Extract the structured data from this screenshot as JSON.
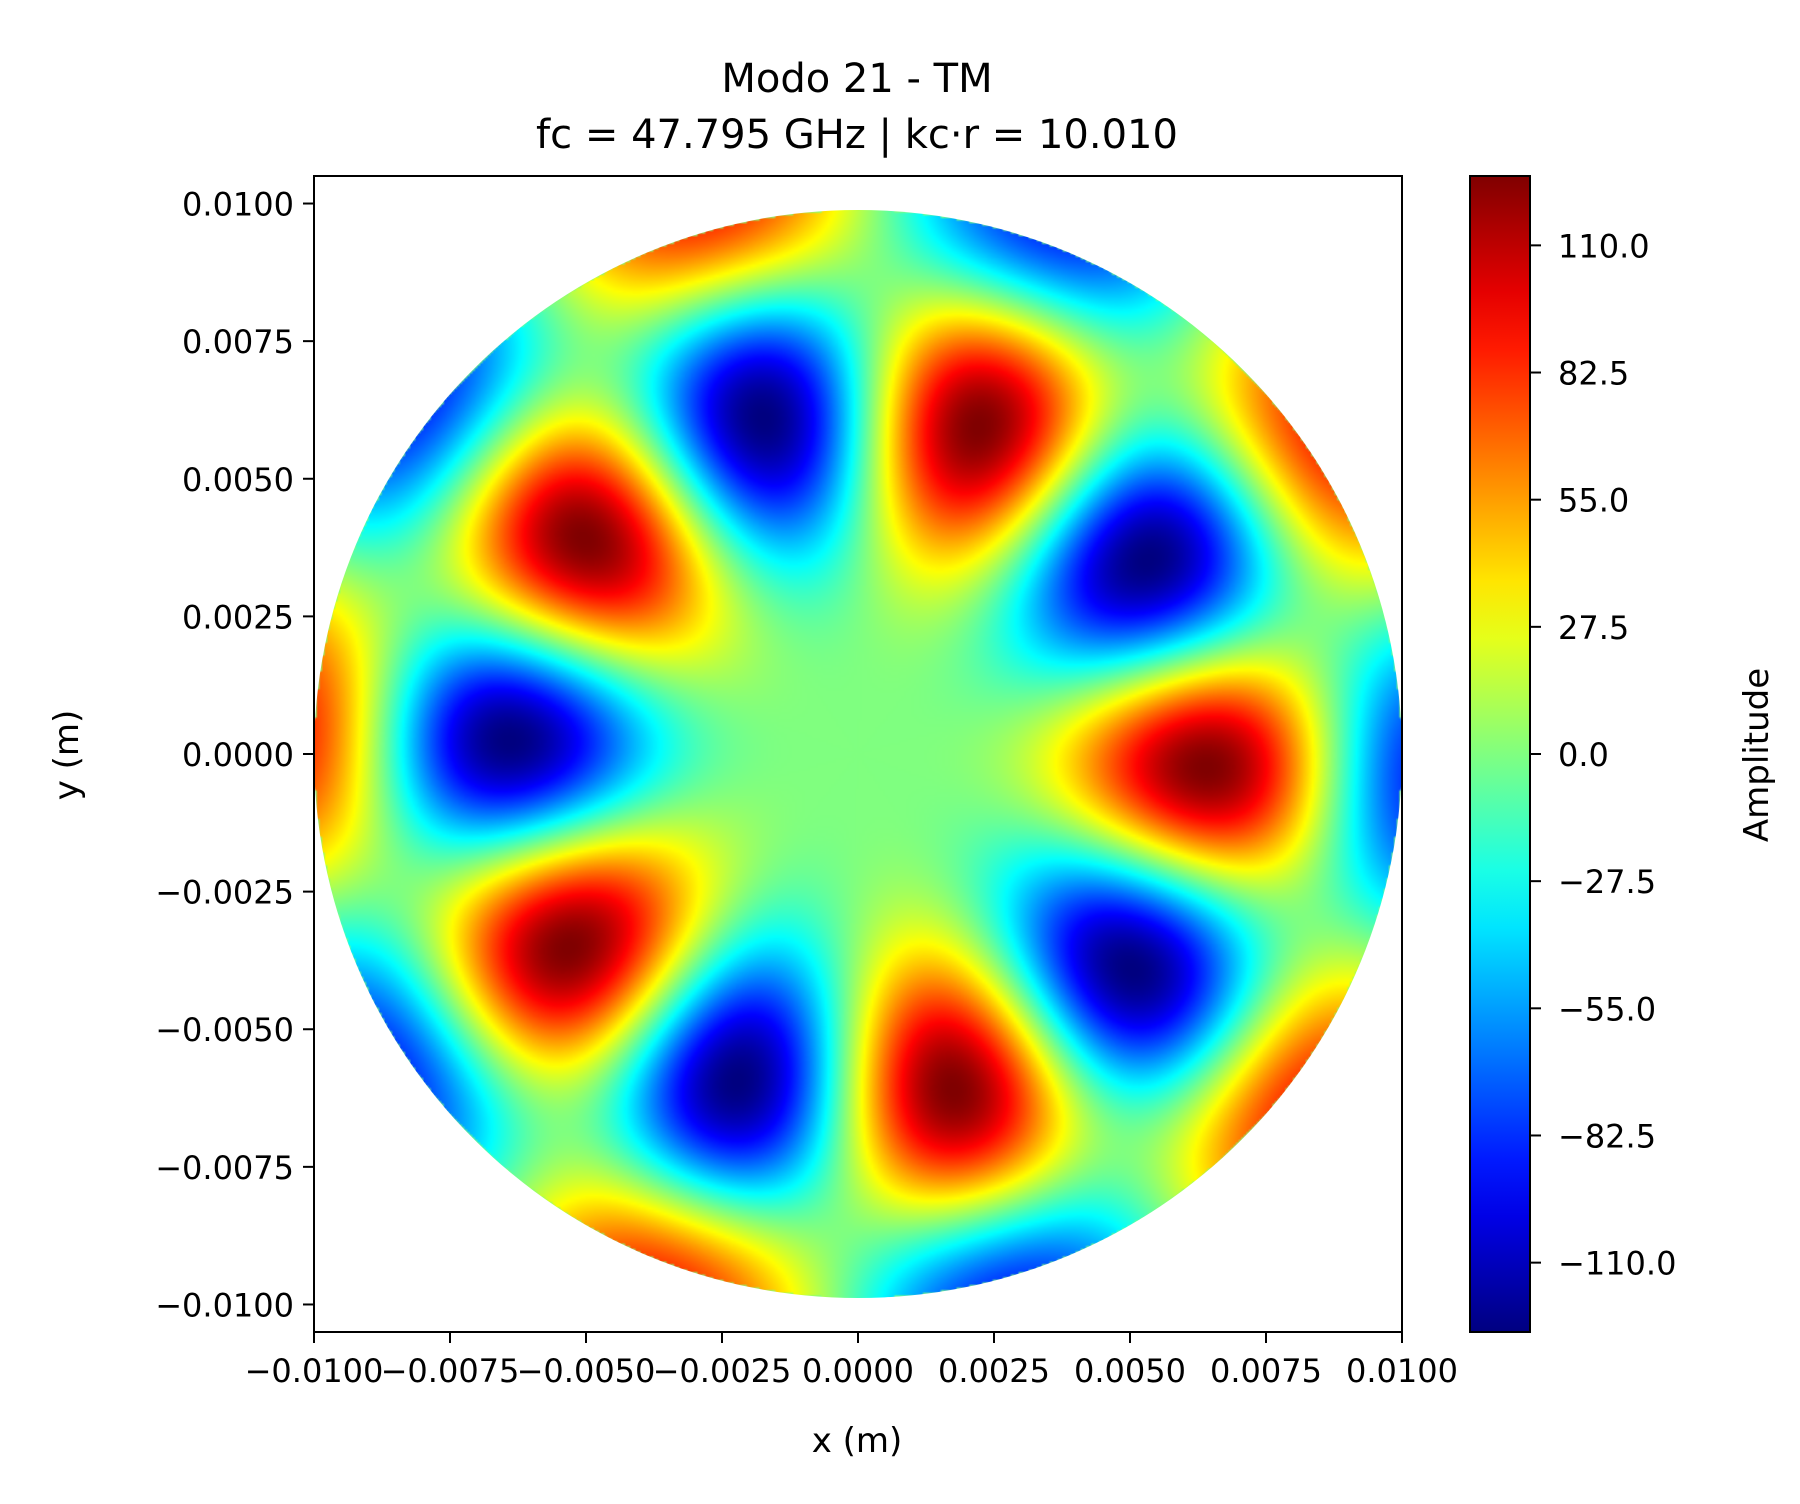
{
  "chart_data": {
    "type": "heatmap",
    "title": "Modo 21 - TM",
    "subtitle": "fc = 47.795 GHz | kc·r = 10.010",
    "xlabel": "x (m)",
    "ylabel": "y (m)",
    "xlim": [
      -0.01,
      0.01
    ],
    "ylim": [
      -0.0105,
      0.0105
    ],
    "xticks": [
      -0.01,
      -0.0075,
      -0.005,
      -0.0025,
      0.0,
      0.0025,
      0.005,
      0.0075,
      0.01
    ],
    "xtick_labels": [
      "−0.0100",
      "−0.0075",
      "−0.0050",
      "−0.0025",
      "0.0000",
      "0.0025",
      "0.0050",
      "0.0075",
      "0.0100"
    ],
    "yticks": [
      0.01,
      0.0075,
      0.005,
      0.0025,
      0.0,
      -0.0025,
      -0.005,
      -0.0075,
      -0.01
    ],
    "ytick_labels": [
      "0.0100",
      "0.0075",
      "0.0050",
      "0.0025",
      "0.0000",
      "−0.0025",
      "−0.0050",
      "−0.0075",
      "−0.0100"
    ],
    "grid": false,
    "domain": "circle",
    "radius": 0.01,
    "azimuthal_order": 5,
    "radial_root": 10.01,
    "phase_deg": 11,
    "amplitude_max": 125,
    "colormap": "jet",
    "colorbar": {
      "label": "Amplitude",
      "range": [
        -125,
        125
      ],
      "ticks": [
        110.0,
        82.5,
        55.0,
        27.5,
        0.0,
        -27.5,
        -55.0,
        -82.5,
        -110.0
      ],
      "tick_labels": [
        "110.0",
        "82.5",
        "55.0",
        "27.5",
        "0.0",
        "−27.5",
        "−55.0",
        "−82.5",
        "−110.0"
      ]
    }
  }
}
